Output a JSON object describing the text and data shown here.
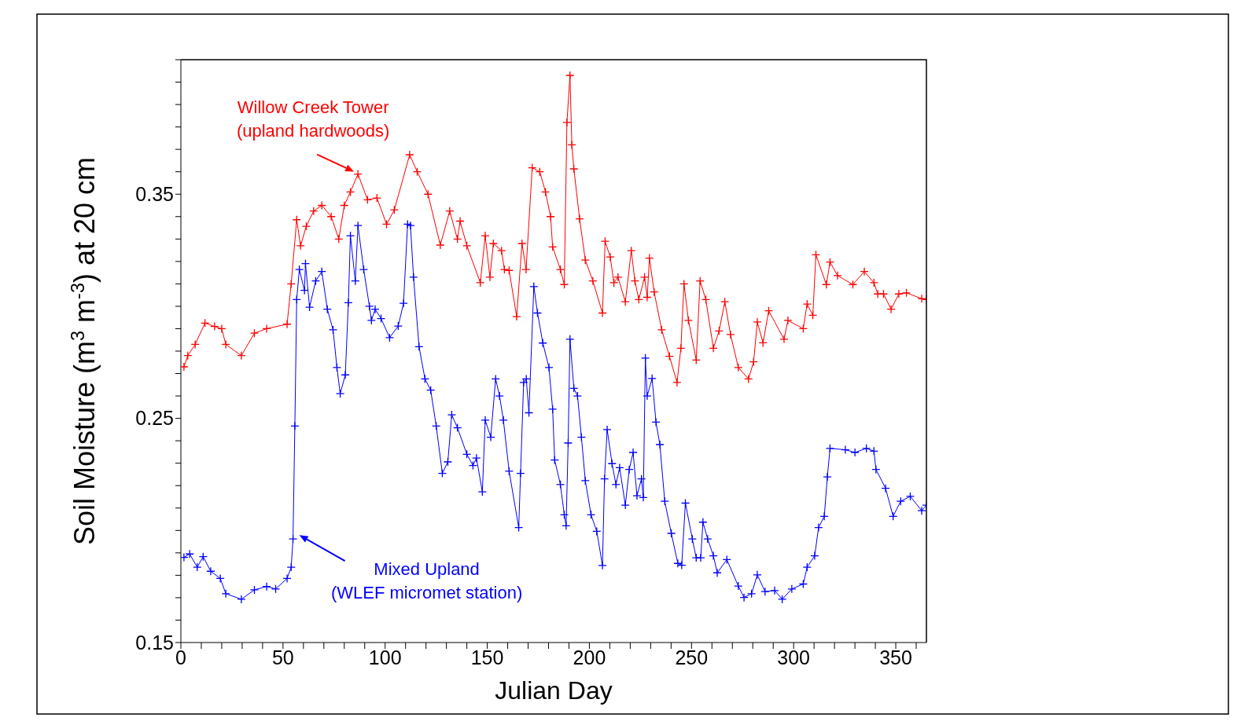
{
  "chart_data": {
    "type": "line",
    "xlabel": "Julian Day",
    "ylabel": "Soil Moisture (m$^{3}$ m$^{-3}$) at 20 cm",
    "xlim": [
      0,
      365
    ],
    "ylim": [
      0.15,
      0.41
    ],
    "xticks": [
      0,
      {
        "value": 10,
        "label": null
      },
      {
        "value": 20,
        "label": null
      },
      {
        "value": 30,
        "label": null
      },
      {
        "value": 40,
        "label": null
      },
      50,
      {
        "value": 60,
        "label": null
      },
      {
        "value": 70,
        "label": null
      },
      {
        "value": 80,
        "label": null
      },
      {
        "value": 90,
        "label": null
      },
      100,
      {
        "value": 110,
        "label": null
      },
      {
        "value": 120,
        "label": null
      },
      {
        "value": 130,
        "label": null
      },
      {
        "value": 140,
        "label": null
      },
      150,
      {
        "value": 160,
        "label": null
      },
      {
        "value": 170,
        "label": null
      },
      {
        "value": 180,
        "label": null
      },
      {
        "value": 190,
        "label": null
      },
      200,
      {
        "value": 210,
        "label": null
      },
      {
        "value": 220,
        "label": null
      },
      {
        "value": 230,
        "label": null
      },
      {
        "value": 240,
        "label": null
      },
      250,
      {
        "value": 260,
        "label": null
      },
      {
        "value": 270,
        "label": null
      },
      {
        "value": 280,
        "label": null
      },
      {
        "value": 290,
        "label": null
      },
      300,
      {
        "value": 310,
        "label": null
      },
      {
        "value": 320,
        "label": null
      },
      {
        "value": 330,
        "label": null
      },
      {
        "value": 340,
        "label": null
      },
      350,
      {
        "value": 360,
        "label": null
      }
    ],
    "yticks": [
      0.15,
      {
        "value": 0.16,
        "label": null
      },
      {
        "value": 0.17,
        "label": null
      },
      {
        "value": 0.18,
        "label": null
      },
      {
        "value": 0.19,
        "label": null
      },
      {
        "value": 0.2,
        "label": null
      },
      {
        "value": 0.21,
        "label": null
      },
      {
        "value": 0.22,
        "label": null
      },
      {
        "value": 0.23,
        "label": null
      },
      {
        "value": 0.24,
        "label": null
      },
      0.25,
      {
        "value": 0.26,
        "label": null
      },
      {
        "value": 0.27,
        "label": null
      },
      {
        "value": 0.28,
        "label": null
      },
      {
        "value": 0.29,
        "label": null
      },
      {
        "value": 0.3,
        "label": null
      },
      {
        "value": 0.31,
        "label": null
      },
      {
        "value": 0.32,
        "label": null
      },
      {
        "value": 0.33,
        "label": null
      },
      {
        "value": 0.34,
        "label": null
      },
      0.35,
      {
        "value": 0.36,
        "label": null
      },
      {
        "value": 0.37,
        "label": null
      },
      {
        "value": 0.38,
        "label": null
      },
      {
        "value": 0.39,
        "label": null
      },
      {
        "value": 0.4,
        "label": null
      },
      {
        "value": 0.41,
        "label": null
      }
    ],
    "grid": false,
    "marker": "cross",
    "line_style": "solid",
    "series": [
      {
        "color": "#ff0000",
        "x": [
          1.5,
          3.4,
          7,
          11.8,
          16.5,
          20,
          22,
          29.6,
          36,
          42,
          52,
          54,
          56.7,
          58.6,
          61.4,
          65,
          69,
          73.6,
          77.3,
          80,
          83,
          86.7,
          91.4,
          96,
          100.7,
          104.5,
          112,
          115.7,
          121,
          127,
          131.6,
          135.4,
          136.7,
          140,
          146.6,
          149,
          151.3,
          153,
          157,
          158.4,
          160.7,
          164.4,
          167,
          169,
          172,
          175.7,
          178.5,
          181,
          182,
          185.8,
          187.7,
          189,
          190.5,
          191.4,
          192.4,
          195.2,
          198,
          201.7,
          206.4,
          207.7,
          210.2,
          212,
          214,
          217.6,
          220.5,
          222.3,
          224.2,
          227,
          228.3,
          229.4,
          231.7,
          235.4,
          239.2,
          242.9,
          244.8,
          246.3,
          248.5,
          252.3,
          254.2,
          257,
          260.7,
          263.5,
          266.3,
          269.1,
          272.9,
          277.9,
          280.4,
          282.2,
          285,
          287.8,
          295.3,
          297.2,
          304.7,
          306.6,
          309.4,
          310.9,
          316,
          317.8,
          321.5,
          329,
          334.6,
          339.3,
          341.2,
          344,
          347.7,
          351.5,
          355.2,
          362.7,
          365
        ],
        "values": [
          0.273,
          0.278,
          0.283,
          0.2925,
          0.291,
          0.29,
          0.283,
          0.278,
          0.288,
          0.29,
          0.292,
          0.31,
          0.3386,
          0.327,
          0.3357,
          0.3425,
          0.345,
          0.34,
          0.33,
          0.345,
          0.351,
          0.359,
          0.3475,
          0.3483,
          0.3366,
          0.343,
          0.3676,
          0.36,
          0.35,
          0.3273,
          0.3425,
          0.33,
          0.338,
          0.327,
          0.3105,
          0.3315,
          0.313,
          0.328,
          0.3248,
          0.3164,
          0.316,
          0.2954,
          0.328,
          0.3164,
          0.3618,
          0.36,
          0.351,
          0.34,
          0.3265,
          0.3164,
          0.3097,
          0.382,
          0.403,
          0.372,
          0.3613,
          0.339,
          0.3206,
          0.3113,
          0.297,
          0.329,
          0.322,
          0.3105,
          0.313,
          0.302,
          0.3248,
          0.3113,
          0.303,
          0.313,
          0.304,
          0.3215,
          0.3064,
          0.2895,
          0.2777,
          0.266,
          0.2813,
          0.31,
          0.2937,
          0.276,
          0.3113,
          0.303,
          0.2813,
          0.289,
          0.302,
          0.2874,
          0.2727,
          0.2676,
          0.2752,
          0.293,
          0.2837,
          0.298,
          0.2853,
          0.2937,
          0.29,
          0.301,
          0.296,
          0.323,
          0.3097,
          0.3197,
          0.3137,
          0.3097,
          0.3155,
          0.3105,
          0.3055,
          0.3055,
          0.2987,
          0.3055,
          0.306,
          0.3034,
          0.303
        ]
      },
      {
        "color": "#0000ff",
        "x": [
          1.5,
          4.3,
          8,
          10.9,
          14.6,
          19.3,
          22,
          29.6,
          36,
          42,
          46.4,
          52,
          54,
          54.9,
          55.8,
          56.7,
          58,
          60.5,
          61,
          63,
          66,
          69,
          71.7,
          74.5,
          76.4,
          78,
          80.5,
          82,
          83,
          85.4,
          86.7,
          89.5,
          92.3,
          93.3,
          95.1,
          98,
          102.2,
          106.4,
          109,
          111,
          112.4,
          113.9,
          116.6,
          119.5,
          122.3,
          125,
          128,
          130.7,
          132.6,
          135.4,
          140,
          143,
          144.7,
          147.6,
          149,
          151.7,
          154.1,
          156,
          157.9,
          160.7,
          165.4,
          166.3,
          167.8,
          169.1,
          170.4,
          172.8,
          174.6,
          177.2,
          180.2,
          182,
          183,
          185.8,
          187.7,
          188.6,
          189.6,
          190.5,
          192.4,
          194.2,
          196.1,
          198,
          200.8,
          203.6,
          206.4,
          207.4,
          208.7,
          211.1,
          213,
          214.8,
          217.6,
          219.5,
          221.4,
          223.3,
          225.5,
          226.4,
          227.4,
          228.3,
          230.7,
          232.6,
          234.5,
          236.9,
          240.1,
          243.3,
          245.2,
          247,
          250.4,
          252.3,
          254.5,
          255.6,
          257.9,
          260.7,
          262.6,
          267.3,
          272.9,
          275.7,
          279.4,
          282.2,
          286,
          290.7,
          294.4,
          299.1,
          304.7,
          306.6,
          310.3,
          312.2,
          315,
          316.5,
          317.8,
          325.3,
          330,
          335.6,
          339.3,
          340.3,
          345,
          348.7,
          352.4,
          357.1,
          362.7,
          365
        ],
        "values": [
          0.188,
          0.1895,
          0.1836,
          0.1883,
          0.1818,
          0.1786,
          0.1718,
          0.1693,
          0.1735,
          0.175,
          0.1739,
          0.1786,
          0.1836,
          0.1962,
          0.2466,
          0.303,
          0.3164,
          0.3071,
          0.319,
          0.2996,
          0.3113,
          0.3155,
          0.2987,
          0.2895,
          0.2727,
          0.261,
          0.2694,
          0.3016,
          0.3315,
          0.3113,
          0.336,
          0.3164,
          0.3,
          0.2937,
          0.2987,
          0.2945,
          0.286,
          0.2912,
          0.3013,
          0.3366,
          0.336,
          0.313,
          0.282,
          0.2676,
          0.2626,
          0.2466,
          0.2255,
          0.2306,
          0.2516,
          0.2458,
          0.234,
          0.229,
          0.2323,
          0.2172,
          0.2492,
          0.2416,
          0.2676,
          0.26,
          0.2492,
          0.2264,
          0.2013,
          0.2255,
          0.266,
          0.2676,
          0.2525,
          0.3088,
          0.297,
          0.2836,
          0.2727,
          0.2541,
          0.2314,
          0.2205,
          0.207,
          0.2021,
          0.239,
          0.2853,
          0.2634,
          0.26,
          0.2416,
          0.2222,
          0.207,
          0.1996,
          0.1844,
          0.223,
          0.245,
          0.2298,
          0.2205,
          0.228,
          0.2113,
          0.2272,
          0.2348,
          0.2155,
          0.223,
          0.2147,
          0.2769,
          0.26,
          0.2678,
          0.2483,
          0.2383,
          0.213,
          0.1987,
          0.1853,
          0.1845,
          0.2122,
          0.1962,
          0.1878,
          0.1878,
          0.2037,
          0.1962,
          0.1887,
          0.1811,
          0.187,
          0.1752,
          0.1701,
          0.1718,
          0.1802,
          0.1727,
          0.1732,
          0.1693,
          0.1739,
          0.1761,
          0.1836,
          0.1887,
          0.2013,
          0.2063,
          0.2239,
          0.2366,
          0.236,
          0.2348,
          0.2366,
          0.2354,
          0.2272,
          0.2188,
          0.2063,
          0.213,
          0.2152,
          0.2088,
          0.2113
        ]
      }
    ],
    "annotations": [
      {
        "text": "Willow Creek Tower\n(upland hardwoods)",
        "x": 86.7,
        "y": 0.359
      },
      {
        "text": "Mixed Upland\n(WLEF micromet station)",
        "x": 54.9,
        "y": 0.1962
      }
    ]
  }
}
